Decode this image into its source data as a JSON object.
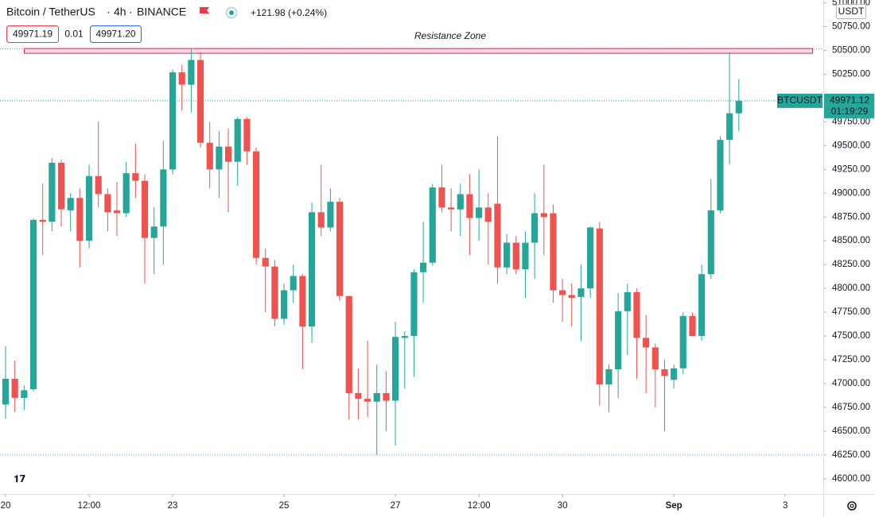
{
  "chart_data": {
    "type": "candlestick",
    "symbol": "Bitcoin / TetherUS",
    "interval": "4h",
    "exchange": "BINANCE",
    "change": "+121.98 (+0.24%)",
    "bid": "49971.19",
    "spread": "0.01",
    "ask": "49971.20",
    "currency": "USDT",
    "annotation": {
      "text": "Resistance Zone",
      "range": [
        50470,
        50520
      ]
    },
    "horizontal_lines": [
      50517,
      46250
    ],
    "last_price": {
      "symbol": "BTCUSDT",
      "value": 49971.12,
      "countdown": "01:19:29"
    },
    "up_color": "#26a69a",
    "down_color": "#ef5350",
    "open": [
      46780,
      47050,
      46850,
      46940,
      48720,
      48700,
      49320,
      48820,
      48950,
      48500,
      49180,
      48990,
      48820,
      48790,
      49210,
      49130,
      48530,
      48650,
      49250,
      50270,
      50140,
      50400,
      49530,
      49250,
      49490,
      49330,
      49780,
      49440,
      48320,
      48230,
      47680,
      47980,
      48130,
      47600,
      48800,
      48640,
      48910,
      47920,
      46900,
      46840,
      46810,
      46900,
      46820,
      47480,
      47500,
      48170,
      48270,
      49060,
      48850,
      48830,
      48990,
      48740,
      48850,
      48890,
      48220,
      48480,
      48200,
      48480,
      48790,
      48790,
      47980,
      47930,
      47910,
      48000,
      48630,
      46990,
      47150,
      47760,
      47960,
      47480,
      47380,
      47150,
      47040,
      47160,
      47710,
      47500,
      48150,
      48820,
      49560,
      49840
    ],
    "high": [
      47390,
      47240,
      46980,
      48730,
      49100,
      49370,
      49350,
      49000,
      49050,
      49300,
      49750,
      49050,
      49120,
      49330,
      49520,
      49200,
      48850,
      49550,
      50300,
      50350,
      50520,
      50480,
      49750,
      49650,
      49680,
      49800,
      49800,
      49480,
      48420,
      48300,
      48050,
      48250,
      48150,
      48900,
      49300,
      49050,
      48950,
      47900,
      47160,
      47450,
      47200,
      47130,
      47650,
      47550,
      48200,
      48700,
      49100,
      49300,
      49050,
      49100,
      49200,
      49250,
      49000,
      49600,
      48570,
      48550,
      48600,
      49000,
      49300,
      48880,
      48100,
      48050,
      48250,
      48650,
      48700,
      47200,
      47950,
      48050,
      48000,
      47720,
      47420,
      47250,
      47200,
      47750,
      47750,
      48250,
      49150,
      49600,
      50480,
      50200
    ],
    "low": [
      46630,
      46700,
      46720,
      46920,
      48350,
      48600,
      48650,
      48600,
      48220,
      48420,
      48850,
      48600,
      48550,
      48750,
      48950,
      48050,
      48150,
      48250,
      49200,
      49870,
      49850,
      49480,
      49050,
      48950,
      48800,
      49080,
      49300,
      48250,
      47750,
      47600,
      47620,
      47850,
      47150,
      47430,
      48550,
      48600,
      47870,
      46620,
      46620,
      46650,
      46250,
      46500,
      46350,
      46950,
      47070,
      47850,
      48240,
      48800,
      48600,
      48550,
      48350,
      48500,
      48250,
      48050,
      48150,
      48150,
      47900,
      48100,
      48350,
      47850,
      47650,
      47600,
      47450,
      47900,
      46770,
      46700,
      46850,
      47300,
      47050,
      46900,
      46750,
      46500,
      46950,
      47100,
      47500,
      47450,
      48100,
      48790,
      49300,
      49650
    ],
    "close": [
      47050,
      46850,
      46930,
      48720,
      48700,
      49320,
      48830,
      48950,
      48500,
      49180,
      48990,
      48800,
      48790,
      49210,
      49130,
      48530,
      48650,
      49250,
      50270,
      50140,
      50400,
      49530,
      49250,
      49490,
      49330,
      49780,
      49440,
      48320,
      48230,
      47680,
      47980,
      48130,
      47600,
      48800,
      48640,
      48910,
      47920,
      46900,
      46840,
      46810,
      46900,
      46820,
      47490,
      47500,
      48170,
      48270,
      49060,
      48850,
      48830,
      48990,
      48740,
      48850,
      48700,
      48220,
      48480,
      48200,
      48480,
      48790,
      48750,
      47980,
      47930,
      47900,
      48000,
      48640,
      46990,
      47150,
      47760,
      47960,
      47480,
      47380,
      47150,
      47080,
      47160,
      47710,
      47500,
      48150,
      48820,
      49560,
      49840,
      49970
    ],
    "xlim": [
      -0.6,
      88.1
    ],
    "xticks": [
      {
        "value": 0,
        "label": "20"
      },
      {
        "value": 9,
        "label": "12:00"
      },
      {
        "value": 18,
        "label": "23"
      },
      {
        "value": 30,
        "label": "25"
      },
      {
        "value": 42,
        "label": "27"
      },
      {
        "value": 51,
        "label": "12:00"
      },
      {
        "value": 60,
        "label": "30"
      },
      {
        "value": 72,
        "label": "Sep"
      },
      {
        "value": 84,
        "label": "3"
      }
    ],
    "ylim": [
      45840,
      51030
    ],
    "yticks": [
      {
        "value": 46000,
        "label": "46000.00"
      },
      {
        "value": 46250,
        "label": "46250.00"
      },
      {
        "value": 46500,
        "label": "46500.00"
      },
      {
        "value": 46750,
        "label": "46750.00"
      },
      {
        "value": 47000,
        "label": "47000.00"
      },
      {
        "value": 47250,
        "label": "47250.00"
      },
      {
        "value": 47500,
        "label": "47500.00"
      },
      {
        "value": 47750,
        "label": "47750.00"
      },
      {
        "value": 48000,
        "label": "48000.00"
      },
      {
        "value": 48250,
        "label": "48250.00"
      },
      {
        "value": 48500,
        "label": "48500.00"
      },
      {
        "value": 48750,
        "label": "48750.00"
      },
      {
        "value": 49000,
        "label": "49000.00"
      },
      {
        "value": 49250,
        "label": "49250.00"
      },
      {
        "value": 49500,
        "label": "49500.00"
      },
      {
        "value": 49750,
        "label": "49750.00"
      },
      {
        "value": 50000,
        "label": "50000.00"
      },
      {
        "value": 50250,
        "label": "50250.00"
      },
      {
        "value": 50500,
        "label": "50500.00"
      },
      {
        "value": 50750,
        "label": "50750.00"
      },
      {
        "value": 51000,
        "label": "51000.00"
      }
    ]
  }
}
